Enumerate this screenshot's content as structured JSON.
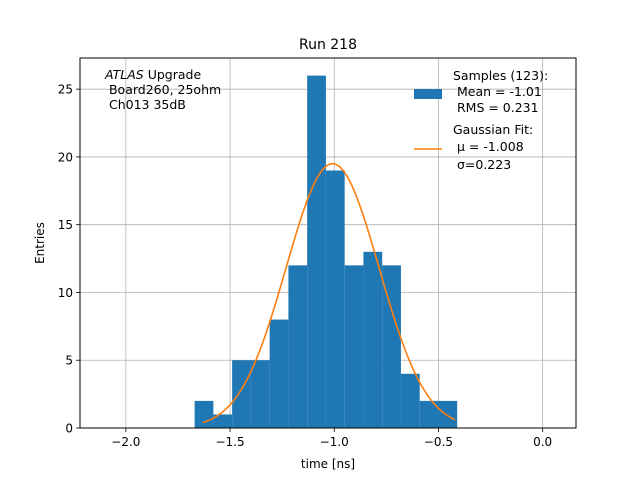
{
  "chart_data": {
    "type": "bar",
    "title": "Run 218",
    "xlabel": "time [ns]",
    "ylabel": "Entries",
    "xlim": [
      -2.22,
      0.16
    ],
    "ylim": [
      0,
      27.3
    ],
    "xticks": [
      -2.0,
      -1.5,
      -1.0,
      -0.5,
      0.0
    ],
    "xtick_labels": [
      "−2.0",
      "−1.5",
      "−1.0",
      "−0.5",
      "0.0"
    ],
    "yticks": [
      0,
      5,
      10,
      15,
      20,
      25
    ],
    "ytick_labels": [
      "0",
      "5",
      "10",
      "15",
      "20",
      "25"
    ],
    "grid": true,
    "legend_position": "top-right",
    "annotation": {
      "line1_italic": "ATLAS",
      "line1_rest": " Upgrade",
      "line2": " Board260, 25ohm",
      "line3": " Ch013 35dB"
    },
    "histogram": {
      "name_lines": [
        "Samples (123):",
        " Mean = -1.01",
        " RMS = 0.231"
      ],
      "color": "#1f77b4",
      "bin_edges": [
        -1.67,
        -1.58,
        -1.49,
        -1.4,
        -1.31,
        -1.22,
        -1.13,
        -1.04,
        -0.95,
        -0.86,
        -0.77,
        -0.68,
        -0.59,
        -0.5,
        -0.41
      ],
      "counts": [
        2,
        1,
        5,
        5,
        8,
        12,
        26,
        19,
        12,
        13,
        12,
        4,
        2,
        2
      ]
    },
    "fit": {
      "name_lines": [
        "Gaussian Fit:",
        " μ = -1.008",
        " σ=0.223"
      ],
      "color": "#ff7f0e",
      "mu": -1.008,
      "sigma": 0.223,
      "amplitude": 19.5,
      "x_range": [
        -1.63,
        -0.42
      ]
    }
  }
}
